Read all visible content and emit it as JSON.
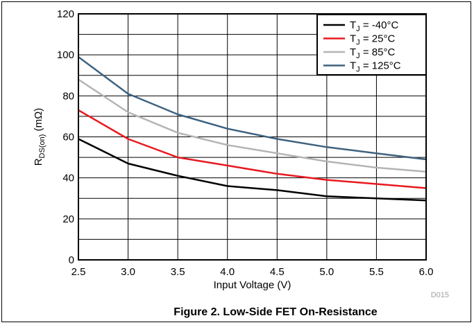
{
  "chart_data": {
    "type": "line",
    "title": "",
    "xlabel": "Input Voltage (V)",
    "ylabel": {
      "main": "R",
      "sub": "DS(on)",
      "unit": " (mΩ)"
    },
    "xlim": [
      2.5,
      6.0
    ],
    "ylim": [
      0,
      120
    ],
    "xticks": [
      2.5,
      3.0,
      3.5,
      4.0,
      4.5,
      5.0,
      5.5,
      6.0
    ],
    "xtick_labels": [
      "2.5",
      "3.0",
      "3.5",
      "4.0",
      "4.5",
      "5.0",
      "5.5",
      "6.0"
    ],
    "yticks": [
      0,
      20,
      40,
      60,
      80,
      100,
      120
    ],
    "ytick_labels": [
      "0",
      "20",
      "40",
      "60",
      "80",
      "100",
      "120"
    ],
    "grid": true,
    "legend_position": "top-right",
    "x": [
      2.5,
      3.0,
      3.5,
      4.0,
      4.5,
      5.0,
      5.5,
      6.0
    ],
    "series": [
      {
        "name": {
          "main": "T",
          "sub": "J",
          "rest": " = -40°C"
        },
        "color": "#000000",
        "values": [
          59,
          47,
          41,
          36,
          34,
          31,
          30,
          29
        ]
      },
      {
        "name": {
          "main": "T",
          "sub": "J",
          "rest": " =  25°C"
        },
        "color": "#e8191f",
        "values": [
          73,
          59,
          50,
          46,
          42,
          39,
          37,
          35
        ]
      },
      {
        "name": {
          "main": "T",
          "sub": "J",
          "rest": " =  85°C"
        },
        "color": "#b4b4b4",
        "values": [
          88,
          72,
          62,
          56,
          52,
          48,
          45,
          43
        ]
      },
      {
        "name": {
          "main": "T",
          "sub": "J",
          "rest": " =  125°C"
        },
        "color": "#3d6280",
        "values": [
          99,
          81,
          71,
          64,
          59,
          55,
          52,
          49
        ]
      }
    ]
  },
  "figure": {
    "code": "D015",
    "caption": "Figure 2. Low-Side FET On-Resistance"
  }
}
